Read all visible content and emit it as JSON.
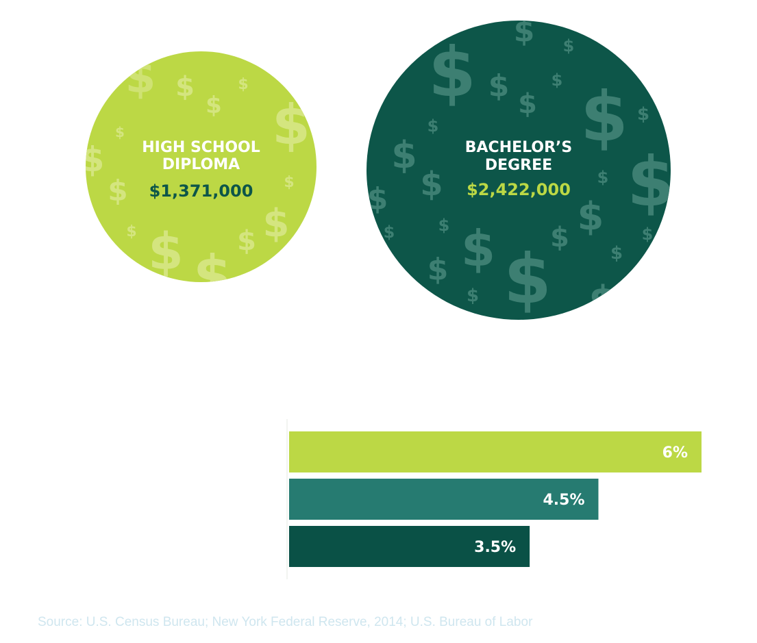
{
  "colors": {
    "lime": "#bcd845",
    "dark_green": "#0d5649",
    "teal": "#267b71",
    "bar_dark": "#0a5146",
    "faint_text": "#f4f6f3",
    "source_text": "#cfe6ef"
  },
  "lifetime_earnings": {
    "high_school": {
      "label_line1": "HIGH SCHOOL",
      "label_line2": "DIPLOMA",
      "value": "$1,371,000",
      "icon": "dollar-sign-icon"
    },
    "bachelors": {
      "label_line1": "BACHELOR’S",
      "label_line2": "DEGREE",
      "value": "$2,422,000",
      "icon": "dollar-sign-icon"
    }
  },
  "chart_data": [
    {
      "type": "bubble",
      "title": "",
      "categories": [
        "HIGH SCHOOL DIPLOMA",
        "BACHELOR’S DEGREE"
      ],
      "values": [
        1371000,
        2422000
      ],
      "value_labels": [
        "$1,371,000",
        "$2,422,000"
      ]
    },
    {
      "type": "bar",
      "orientation": "horizontal",
      "title": "",
      "categories": [
        "",
        "",
        ""
      ],
      "values": [
        6,
        4.5,
        3.5
      ],
      "value_labels": [
        "6%",
        "4.5%",
        "3.5%"
      ],
      "colors": [
        "#bcd845",
        "#267b71",
        "#0a5146"
      ],
      "xlim": [
        0,
        6
      ],
      "grid": false,
      "legend": "none"
    }
  ],
  "source": "Source: U.S. Census Bureau; New York Federal Reserve, 2014; U.S. Bureau of Labor"
}
